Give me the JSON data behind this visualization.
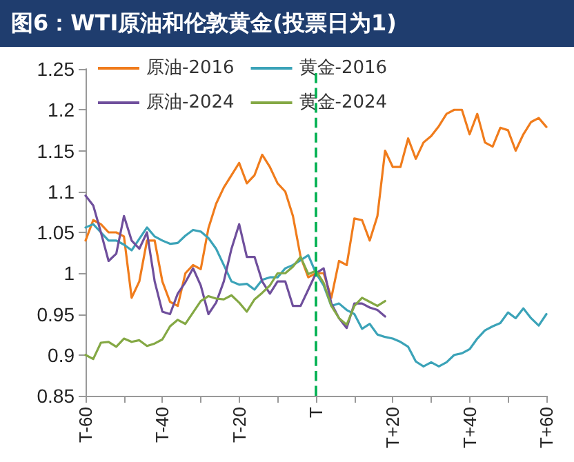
{
  "chart_data": {
    "type": "line",
    "title": "图6：WTI原油和伦敦黄金(投票日为1)",
    "categories": [
      "T-60",
      null,
      null,
      null,
      null,
      null,
      null,
      null,
      null,
      null,
      "T-40",
      null,
      null,
      null,
      null,
      null,
      null,
      null,
      null,
      null,
      "T-20",
      null,
      null,
      null,
      null,
      null,
      null,
      null,
      null,
      null,
      "T",
      null,
      null,
      null,
      null,
      null,
      null,
      null,
      null,
      null,
      "T+20",
      null,
      null,
      null,
      null,
      null,
      null,
      null,
      null,
      null,
      "T+40",
      null,
      null,
      null,
      null,
      null,
      null,
      null,
      null,
      null,
      "T+60"
    ],
    "ylim": [
      0.85,
      1.25
    ],
    "yticks": [
      0.85,
      0.9,
      0.95,
      1,
      1.05,
      1.1,
      1.15,
      1.2,
      1.25
    ],
    "grid": false,
    "legend": "top left",
    "marker": "none",
    "line_style": "solid",
    "ref_lines": [
      {
        "axis": "x",
        "value": "T",
        "label": null,
        "color": "#00b050",
        "line_style": "dashed"
      }
    ],
    "series": [
      {
        "name": "原油-2016",
        "color": "#f07c1c",
        "values": [
          1.04,
          1.065,
          1.06,
          1.05,
          1.05,
          1.045,
          0.97,
          0.99,
          1.04,
          1.04,
          0.99,
          0.965,
          0.96,
          1.0,
          1.01,
          1.005,
          1.055,
          1.085,
          1.105,
          1.12,
          1.135,
          1.11,
          1.12,
          1.145,
          1.13,
          1.11,
          1.1,
          1.07,
          1.02,
          0.995,
          1.0,
          1.0,
          0.97,
          1.015,
          1.01,
          1.067,
          1.065,
          1.04,
          1.07,
          1.15,
          1.13,
          1.13,
          1.165,
          1.14,
          1.16,
          1.168,
          1.18,
          1.195,
          1.2,
          1.2,
          1.17,
          1.195,
          1.16,
          1.155,
          1.178,
          1.175,
          1.15,
          1.17,
          1.185,
          1.19,
          1.179
        ]
      },
      {
        "name": "黄金-2016",
        "color": "#3ba3b8",
        "values": [
          1.056,
          1.06,
          1.05,
          1.04,
          1.04,
          1.035,
          1.028,
          1.042,
          1.056,
          1.045,
          1.04,
          1.036,
          1.037,
          1.046,
          1.053,
          1.051,
          1.043,
          1.03,
          1.01,
          0.99,
          0.986,
          0.987,
          0.98,
          0.992,
          0.995,
          0.995,
          1.006,
          1.01,
          1.016,
          1.022,
          1.0,
          0.985,
          0.96,
          0.963,
          0.955,
          0.95,
          0.932,
          0.938,
          0.925,
          0.922,
          0.92,
          0.916,
          0.91,
          0.892,
          0.886,
          0.891,
          0.886,
          0.891,
          0.9,
          0.902,
          0.907,
          0.92,
          0.93,
          0.935,
          0.939,
          0.952,
          0.945,
          0.957,
          0.945,
          0.936,
          0.95
        ]
      },
      {
        "name": "原油-2024",
        "color": "#6f4f9c",
        "values": [
          1.095,
          1.083,
          1.05,
          1.015,
          1.024,
          1.07,
          1.04,
          1.03,
          1.05,
          0.99,
          0.953,
          0.95,
          0.975,
          0.989,
          1.006,
          0.985,
          0.95,
          0.964,
          0.99,
          1.03,
          1.06,
          1.02,
          1.02,
          0.99,
          0.975,
          0.99,
          0.99,
          0.96,
          0.96,
          0.98,
          1.0,
          1.006,
          0.963,
          0.945,
          0.933,
          0.963,
          0.963,
          0.958,
          0.955,
          0.947,
          null,
          null,
          null,
          null,
          null,
          null,
          null,
          null,
          null,
          null,
          null,
          null,
          null,
          null,
          null,
          null,
          null,
          null,
          null,
          null,
          null
        ]
      },
      {
        "name": "黄金-2024",
        "color": "#84a844",
        "values": [
          0.9,
          0.895,
          0.915,
          0.916,
          0.91,
          0.92,
          0.916,
          0.918,
          0.911,
          0.914,
          0.919,
          0.935,
          0.943,
          0.938,
          0.952,
          0.966,
          0.972,
          0.969,
          0.968,
          0.973,
          0.964,
          0.953,
          0.968,
          0.976,
          0.985,
          1.0,
          1.0,
          1.008,
          1.02,
          0.999,
          1.003,
          0.988,
          0.96,
          0.945,
          0.937,
          0.96,
          0.97,
          0.965,
          0.96,
          0.966,
          null,
          null,
          null,
          null,
          null,
          null,
          null,
          null,
          null,
          null,
          null,
          null,
          null,
          null,
          null,
          null,
          null,
          null,
          null,
          null,
          null
        ]
      }
    ]
  }
}
